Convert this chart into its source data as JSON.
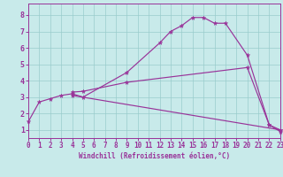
{
  "bg_color": "#c8eaea",
  "grid_color": "#99cccc",
  "line_color": "#993399",
  "xlabel": "Windchill (Refroidissement éolien,°C)",
  "curve1_x": [
    0,
    1,
    2,
    3,
    4,
    5,
    9,
    12,
    13,
    14,
    15,
    16,
    17,
    18,
    20,
    22,
    23
  ],
  "curve1_y": [
    1.5,
    2.7,
    2.9,
    3.1,
    3.2,
    3.0,
    4.5,
    6.3,
    7.0,
    7.35,
    7.85,
    7.85,
    7.5,
    7.5,
    5.55,
    1.3,
    0.9
  ],
  "curve2_x": [
    4,
    5,
    9,
    20,
    22,
    23
  ],
  "curve2_y": [
    3.3,
    3.35,
    3.9,
    4.8,
    1.3,
    1.0
  ],
  "curve3_x": [
    4,
    23
  ],
  "curve3_y": [
    3.1,
    1.0
  ],
  "xlim": [
    0,
    23
  ],
  "ylim": [
    0.5,
    8.7
  ],
  "yticks": [
    1,
    2,
    3,
    4,
    5,
    6,
    7,
    8
  ],
  "xticks": [
    0,
    1,
    2,
    3,
    4,
    5,
    6,
    7,
    8,
    9,
    10,
    11,
    12,
    13,
    14,
    15,
    16,
    17,
    18,
    19,
    20,
    21,
    22,
    23
  ],
  "tick_fontsize": 5.5,
  "xlabel_fontsize": 5.5
}
